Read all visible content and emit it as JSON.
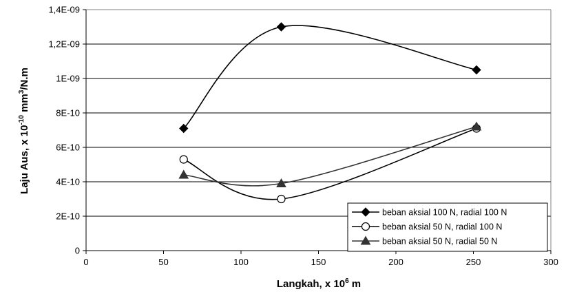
{
  "chart_data": {
    "type": "line",
    "title": "",
    "xlabel": "Langkah,  x 10",
    "xlabel_sup": "6",
    "xlabel_unit": " m",
    "ylabel": "Laju Aus, x 10",
    "ylabel_sup1": "-10",
    "ylabel_mid": " mm",
    "ylabel_sup2": "3",
    "ylabel_unit": "/N.m",
    "xlim": [
      0,
      300
    ],
    "ylim": [
      0,
      1.4e-09
    ],
    "x_ticks": [
      0,
      50,
      100,
      150,
      200,
      250,
      300
    ],
    "x_tick_labels": [
      "0",
      "50",
      "100",
      "150",
      "200",
      "250",
      "300"
    ],
    "y_ticks": [
      0,
      2e-10,
      4e-10,
      6e-10,
      8e-10,
      1e-09,
      1.2e-09,
      1.4e-09
    ],
    "y_tick_labels": [
      "0",
      "2E-10",
      "4E-10",
      "6E-10",
      "8E-10",
      "1E-09",
      "1,2E-09",
      "1,4E-09"
    ],
    "grid": "horizontal",
    "legend_position": "bottom-right",
    "smooth": true,
    "series": [
      {
        "name": "beban aksial 100 N, radial 100 N",
        "marker": "diamond",
        "color": "#000000",
        "x": [
          63,
          126,
          252
        ],
        "y": [
          7.1e-10,
          1.3e-09,
          1.05e-09
        ]
      },
      {
        "name": "beban aksial 50 N, radial 100 N",
        "marker": "circle",
        "color": "#000000",
        "x": [
          63,
          126,
          252
        ],
        "y": [
          5.3e-10,
          3e-10,
          7.1e-10
        ]
      },
      {
        "name": "beban aksial 50 N, radial 50 N",
        "marker": "triangle",
        "color": "#333333",
        "x": [
          63,
          126,
          252
        ],
        "y": [
          4.4e-10,
          3.9e-10,
          7.2e-10
        ]
      }
    ]
  }
}
